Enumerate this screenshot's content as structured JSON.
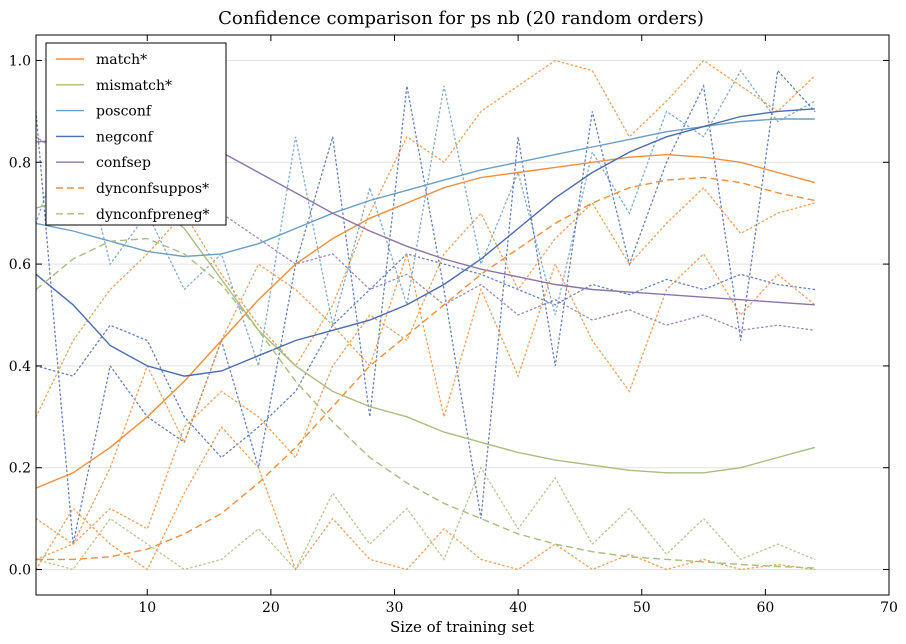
{
  "chart_data": {
    "type": "line",
    "title": "Confidence comparison for ps nb (20 random orders)",
    "xlabel": "Size of training set",
    "ylabel": "",
    "xlim": [
      1,
      70
    ],
    "ylim": [
      -0.05,
      1.05
    ],
    "xticks": [
      10,
      20,
      30,
      40,
      50,
      60,
      70
    ],
    "yticks": [
      0.0,
      0.2,
      0.4,
      0.6,
      0.8,
      1.0
    ],
    "grid": "horizontal",
    "legend_position": "top-left",
    "x": [
      1,
      4,
      7,
      10,
      13,
      16,
      19,
      22,
      25,
      28,
      31,
      34,
      37,
      40,
      43,
      46,
      49,
      52,
      55,
      58,
      61,
      64
    ],
    "series": [
      {
        "name": "match*",
        "color": "#f28e3c",
        "style": "solid",
        "values": [
          0.16,
          0.19,
          0.24,
          0.3,
          0.37,
          0.45,
          0.53,
          0.6,
          0.65,
          0.69,
          0.72,
          0.75,
          0.77,
          0.78,
          0.79,
          0.8,
          0.81,
          0.815,
          0.81,
          0.8,
          0.78,
          0.76
        ]
      },
      {
        "name": "mismatch*",
        "color": "#a9bd7e",
        "style": "solid",
        "values": [
          0.71,
          0.73,
          0.745,
          0.73,
          0.67,
          0.57,
          0.47,
          0.4,
          0.35,
          0.32,
          0.3,
          0.27,
          0.25,
          0.23,
          0.215,
          0.205,
          0.195,
          0.19,
          0.19,
          0.2,
          0.22,
          0.24
        ]
      },
      {
        "name": "posconf",
        "color": "#6a9ec6",
        "style": "solid",
        "values": [
          0.68,
          0.665,
          0.645,
          0.625,
          0.615,
          0.62,
          0.64,
          0.67,
          0.7,
          0.725,
          0.745,
          0.765,
          0.785,
          0.8,
          0.815,
          0.83,
          0.845,
          0.86,
          0.87,
          0.88,
          0.885,
          0.885
        ]
      },
      {
        "name": "negconf",
        "color": "#4a6bb0",
        "style": "solid",
        "values": [
          0.58,
          0.52,
          0.44,
          0.4,
          0.38,
          0.39,
          0.42,
          0.45,
          0.47,
          0.49,
          0.52,
          0.56,
          0.61,
          0.67,
          0.73,
          0.78,
          0.82,
          0.85,
          0.87,
          0.89,
          0.9,
          0.905
        ]
      },
      {
        "name": "confsep",
        "color": "#8b74aa",
        "style": "solid",
        "values": [
          0.84,
          0.845,
          0.85,
          0.845,
          0.84,
          0.82,
          0.78,
          0.74,
          0.7,
          0.665,
          0.635,
          0.61,
          0.59,
          0.575,
          0.56,
          0.55,
          0.545,
          0.54,
          0.535,
          0.53,
          0.525,
          0.52
        ]
      },
      {
        "name": "dynconfsuppos*",
        "color": "#f28e3c",
        "style": "dashed",
        "values": [
          0.02,
          0.02,
          0.025,
          0.04,
          0.07,
          0.11,
          0.17,
          0.24,
          0.32,
          0.4,
          0.46,
          0.52,
          0.58,
          0.63,
          0.68,
          0.72,
          0.75,
          0.765,
          0.77,
          0.76,
          0.74,
          0.725
        ]
      },
      {
        "name": "dynconfpreneg*",
        "color": "#a9bd7e",
        "style": "dashed",
        "values": [
          0.55,
          0.61,
          0.645,
          0.65,
          0.62,
          0.56,
          0.47,
          0.37,
          0.29,
          0.22,
          0.17,
          0.13,
          0.1,
          0.07,
          0.05,
          0.035,
          0.025,
          0.02,
          0.015,
          0.01,
          0.006,
          0.003
        ]
      }
    ],
    "background_series": [
      {
        "color": "#6a9ec6",
        "values": [
          0.68,
          0.9,
          0.6,
          0.7,
          0.55,
          0.62,
          0.4,
          0.85,
          0.48,
          0.75,
          0.52,
          0.95,
          0.6,
          0.78,
          0.5,
          0.82,
          0.7,
          0.9,
          0.85,
          0.98,
          0.88,
          0.92
        ]
      },
      {
        "color": "#4a6bb0",
        "values": [
          0.9,
          0.05,
          0.4,
          0.3,
          0.25,
          0.45,
          0.2,
          0.6,
          0.85,
          0.3,
          0.95,
          0.55,
          0.1,
          0.85,
          0.4,
          0.9,
          0.6,
          0.8,
          0.95,
          0.45,
          0.98,
          0.9
        ]
      },
      {
        "color": "#8b74aa",
        "values": [
          0.85,
          0.8,
          0.7,
          0.75,
          0.72,
          0.7,
          0.65,
          0.6,
          0.62,
          0.55,
          0.58,
          0.52,
          0.56,
          0.5,
          0.53,
          0.49,
          0.51,
          0.48,
          0.5,
          0.47,
          0.48,
          0.47
        ]
      },
      {
        "color": "#4a6bb0",
        "values": [
          0.4,
          0.38,
          0.48,
          0.45,
          0.3,
          0.22,
          0.28,
          0.35,
          0.48,
          0.55,
          0.62,
          0.6,
          0.58,
          0.55,
          0.52,
          0.56,
          0.54,
          0.57,
          0.55,
          0.58,
          0.56,
          0.55
        ]
      },
      {
        "color": "#f28e3c",
        "values": [
          0.3,
          0.45,
          0.55,
          0.62,
          0.7,
          0.58,
          0.48,
          0.4,
          0.52,
          0.7,
          0.85,
          0.8,
          0.9,
          0.95,
          1.0,
          0.98,
          0.85,
          0.92,
          1.0,
          0.95,
          0.9,
          0.97
        ]
      },
      {
        "color": "#f28e3c",
        "values": [
          0.1,
          0.05,
          0.2,
          0.4,
          0.25,
          0.45,
          0.6,
          0.55,
          0.48,
          0.4,
          0.62,
          0.3,
          0.55,
          0.38,
          0.6,
          0.45,
          0.35,
          0.55,
          0.62,
          0.5,
          0.58,
          0.52
        ]
      },
      {
        "color": "#f28e3c",
        "values": [
          0.02,
          0.05,
          0.12,
          0.08,
          0.28,
          0.35,
          0.3,
          0.22,
          0.4,
          0.5,
          0.45,
          0.62,
          0.7,
          0.55,
          0.65,
          0.72,
          0.6,
          0.68,
          0.75,
          0.66,
          0.7,
          0.72
        ]
      },
      {
        "color": "#a9bd7e",
        "values": [
          0.02,
          0.0,
          0.1,
          0.05,
          0.0,
          0.02,
          0.08,
          0.0,
          0.15,
          0.05,
          0.12,
          0.02,
          0.2,
          0.08,
          0.18,
          0.05,
          0.12,
          0.03,
          0.1,
          0.02,
          0.05,
          0.02
        ]
      },
      {
        "color": "#f28e3c",
        "values": [
          0.0,
          0.12,
          0.05,
          0.0,
          0.15,
          0.28,
          0.2,
          0.0,
          0.1,
          0.02,
          0.0,
          0.08,
          0.02,
          0.0,
          0.05,
          0.0,
          0.03,
          0.0,
          0.02,
          0.0,
          0.01,
          0.0
        ]
      }
    ]
  }
}
